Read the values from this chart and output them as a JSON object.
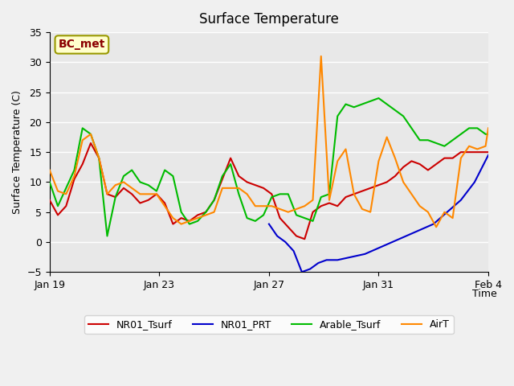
{
  "title": "Surface Temperature",
  "ylabel": "Surface Temperature (C)",
  "xlabel": "Time",
  "ylim": [
    -5,
    35
  ],
  "xlim": [
    0,
    16
  ],
  "annotation_text": "BC_met",
  "fig_bg_color": "#f0f0f0",
  "plot_bg_color": "#e8e8e8",
  "grid_color": "white",
  "series_colors": {
    "NR01_Tsurf": "#cc0000",
    "NR01_PRT": "#0000cc",
    "Arable_Tsurf": "#00bb00",
    "AirT": "#ff8800"
  },
  "series_linewidth": 1.5,
  "x_ticks": [
    "Jan 19",
    "Jan 23",
    "Jan 27",
    "Jan 31",
    "Feb 4"
  ],
  "x_tick_positions": [
    0,
    4,
    8,
    12,
    16
  ],
  "y_ticks": [
    -5,
    0,
    5,
    10,
    15,
    20,
    25,
    30,
    35
  ],
  "NR01_Tsurf_x": [
    0.0,
    0.3,
    0.6,
    0.9,
    1.2,
    1.5,
    1.8,
    2.1,
    2.4,
    2.7,
    3.0,
    3.3,
    3.6,
    3.9,
    4.2,
    4.5,
    4.8,
    5.1,
    5.4,
    5.7,
    6.0,
    6.3,
    6.6,
    6.9,
    7.2,
    7.5,
    7.8,
    8.1,
    8.4,
    8.7,
    9.0,
    9.3,
    9.6,
    9.9,
    10.2,
    10.5,
    10.8,
    11.1,
    11.4,
    11.7,
    12.0,
    12.3,
    12.6,
    12.9,
    13.2,
    13.5,
    13.8,
    14.1,
    14.4,
    14.7,
    15.0,
    15.3,
    15.6,
    15.9,
    16.0
  ],
  "NR01_Tsurf_y": [
    7.0,
    4.5,
    6.0,
    10.5,
    13.0,
    16.5,
    14.0,
    8.0,
    7.5,
    9.0,
    8.0,
    6.5,
    7.0,
    8.0,
    6.5,
    3.0,
    4.0,
    3.5,
    4.5,
    5.0,
    7.0,
    10.5,
    14.0,
    11.0,
    10.0,
    9.5,
    9.0,
    8.0,
    4.0,
    2.5,
    1.0,
    0.5,
    5.0,
    6.0,
    6.5,
    6.0,
    7.5,
    8.0,
    8.5,
    9.0,
    9.5,
    10.0,
    11.0,
    12.5,
    13.5,
    13.0,
    12.0,
    13.0,
    14.0,
    14.0,
    15.0,
    15.0,
    15.0,
    15.0,
    15.0
  ],
  "NR01_PRT_x": [
    8.0,
    8.3,
    8.6,
    8.9,
    9.2,
    9.5,
    9.8,
    10.1,
    10.5,
    11.0,
    11.5,
    12.0,
    12.5,
    13.0,
    13.5,
    14.0,
    14.5,
    15.0,
    15.5,
    16.0
  ],
  "NR01_PRT_y": [
    3.0,
    1.0,
    0.0,
    -1.5,
    -5.0,
    -4.5,
    -3.5,
    -3.0,
    -3.0,
    -2.5,
    -2.0,
    -1.0,
    0.0,
    1.0,
    2.0,
    3.0,
    5.0,
    7.0,
    10.0,
    14.5
  ],
  "Arable_Tsurf_x": [
    0.0,
    0.3,
    0.6,
    0.9,
    1.2,
    1.5,
    1.8,
    2.1,
    2.4,
    2.7,
    3.0,
    3.3,
    3.6,
    3.9,
    4.2,
    4.5,
    4.8,
    5.1,
    5.4,
    5.7,
    6.0,
    6.3,
    6.6,
    6.9,
    7.2,
    7.5,
    7.8,
    8.1,
    8.4,
    8.7,
    9.0,
    9.3,
    9.6,
    9.9,
    10.2,
    10.5,
    10.8,
    11.1,
    11.4,
    11.7,
    12.0,
    12.3,
    12.6,
    12.9,
    13.2,
    13.5,
    13.8,
    14.1,
    14.4,
    14.7,
    15.0,
    15.3,
    15.6,
    15.9,
    16.0
  ],
  "Arable_Tsurf_y": [
    10.0,
    6.0,
    9.0,
    12.0,
    19.0,
    18.0,
    14.0,
    1.0,
    7.5,
    11.0,
    12.0,
    10.0,
    9.5,
    8.5,
    12.0,
    11.0,
    5.0,
    3.0,
    3.5,
    5.0,
    7.0,
    11.0,
    13.0,
    8.0,
    4.0,
    3.5,
    4.5,
    7.5,
    8.0,
    8.0,
    4.5,
    4.0,
    3.5,
    7.5,
    8.0,
    21.0,
    23.0,
    22.5,
    23.0,
    23.5,
    24.0,
    23.0,
    22.0,
    21.0,
    19.0,
    17.0,
    17.0,
    16.5,
    16.0,
    17.0,
    18.0,
    19.0,
    19.0,
    18.0,
    18.0
  ],
  "AirT_x": [
    0.0,
    0.3,
    0.6,
    0.9,
    1.2,
    1.5,
    1.8,
    2.1,
    2.4,
    2.7,
    3.0,
    3.3,
    3.6,
    3.9,
    4.2,
    4.5,
    4.8,
    5.1,
    5.4,
    5.7,
    6.0,
    6.3,
    6.6,
    6.9,
    7.2,
    7.5,
    7.8,
    8.1,
    8.4,
    8.7,
    9.0,
    9.3,
    9.6,
    9.9,
    10.2,
    10.5,
    10.8,
    11.1,
    11.4,
    11.7,
    12.0,
    12.3,
    12.6,
    12.9,
    13.2,
    13.5,
    13.8,
    14.1,
    14.4,
    14.7,
    15.0,
    15.3,
    15.6,
    15.9,
    16.0
  ],
  "AirT_y": [
    12.0,
    8.5,
    8.0,
    11.0,
    17.0,
    18.0,
    14.0,
    8.0,
    9.5,
    10.0,
    9.0,
    8.0,
    8.0,
    8.0,
    6.0,
    4.0,
    3.0,
    3.5,
    4.0,
    4.5,
    5.0,
    9.0,
    9.0,
    9.0,
    8.0,
    6.0,
    6.0,
    6.0,
    5.5,
    5.0,
    5.5,
    6.0,
    7.0,
    31.0,
    7.0,
    13.5,
    15.5,
    8.0,
    5.5,
    5.0,
    13.5,
    17.5,
    14.0,
    10.0,
    8.0,
    6.0,
    5.0,
    2.5,
    5.0,
    4.0,
    14.0,
    16.0,
    15.5,
    16.0,
    19.0
  ]
}
